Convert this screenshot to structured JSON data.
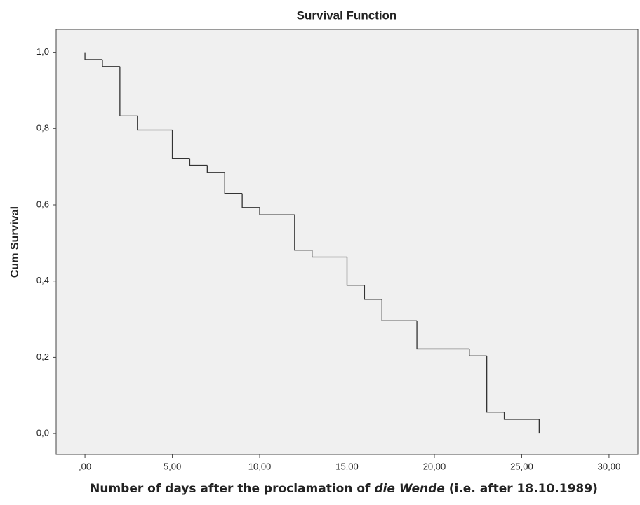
{
  "chart_data": {
    "type": "step",
    "title": "Survival Function",
    "x_label": {
      "before": "Number of days after the proclamation of ",
      "emphasis": "die Wende",
      "after": " (i.e. after 18.10.1989)"
    },
    "y_label": "Cum Survival",
    "x": [
      0,
      0,
      1,
      2,
      3,
      5,
      6,
      7,
      8,
      9,
      10,
      12,
      13,
      15,
      16,
      17,
      19,
      22,
      23,
      24,
      26
    ],
    "values": [
      1.0,
      0.981,
      0.963,
      0.833,
      0.796,
      0.722,
      0.704,
      0.685,
      0.63,
      0.593,
      0.574,
      0.481,
      0.463,
      0.389,
      0.352,
      0.296,
      0.222,
      0.204,
      0.056,
      0.037,
      0.0
    ],
    "color": "#333333",
    "background": "#f0f0f0",
    "xlim": [
      -1.65,
      31.65
    ],
    "ylim": [
      -0.055,
      1.06
    ],
    "xticks": [
      {
        "value": 0,
        "label": ",00"
      },
      {
        "value": 5,
        "label": "5,00"
      },
      {
        "value": 10,
        "label": "10,00"
      },
      {
        "value": 15,
        "label": "15,00"
      },
      {
        "value": 20,
        "label": "20,00"
      },
      {
        "value": 25,
        "label": "25,00"
      },
      {
        "value": 30,
        "label": "30,00"
      }
    ],
    "yticks": [
      {
        "value": 0,
        "label": "0,0"
      },
      {
        "value": 0.2,
        "label": "0,2"
      },
      {
        "value": 0.4,
        "label": "0,4"
      },
      {
        "value": 0.6,
        "label": "0,6"
      },
      {
        "value": 0.8,
        "label": "0,8"
      },
      {
        "value": 1.0,
        "label": "1,0"
      }
    ]
  }
}
